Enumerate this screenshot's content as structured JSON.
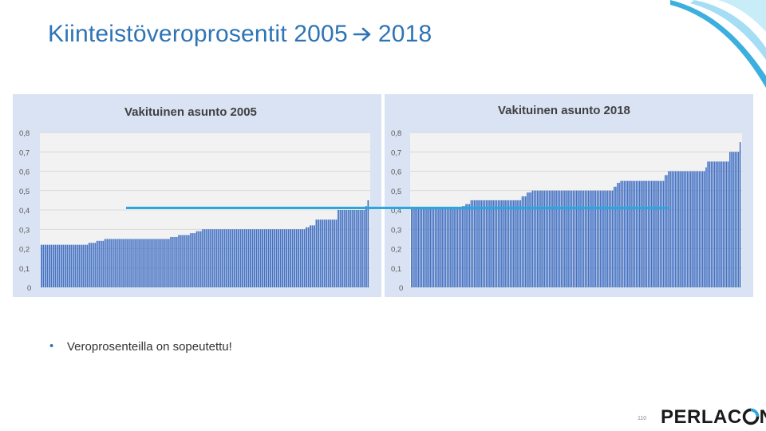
{
  "slide": {
    "title_part1": "Kiinteistöveroprosentit 2005",
    "title_part2": "2018",
    "bullet_text": "Veroprosenteilla on sopeutettu!",
    "page_number": "110",
    "logo_text": "PERLAC",
    "logo_tail": "N"
  },
  "colors": {
    "title": "#2e74b5",
    "bar": "#4472c4",
    "panel": "#dae3f3",
    "reference_line": "#29a8e0"
  },
  "reference_line_value": 0.42,
  "chart_data": [
    {
      "type": "bar",
      "title": "Vakituinen asunto 2005",
      "ylim": [
        0,
        0.8
      ],
      "yticks": [
        "0",
        "0,1",
        "0,2",
        "0,3",
        "0,4",
        "0,5",
        "0,6",
        "0,7",
        "0,8"
      ],
      "xlabel": "",
      "ylabel": "",
      "grid": true,
      "series": [
        {
          "name": "Vakituinen asunto 2005",
          "segments": [
            {
              "count": 24,
              "value": 0.22
            },
            {
              "count": 4,
              "value": 0.23
            },
            {
              "count": 4,
              "value": 0.24
            },
            {
              "count": 33,
              "value": 0.25
            },
            {
              "count": 4,
              "value": 0.26
            },
            {
              "count": 6,
              "value": 0.27
            },
            {
              "count": 3,
              "value": 0.28
            },
            {
              "count": 3,
              "value": 0.29
            },
            {
              "count": 52,
              "value": 0.3
            },
            {
              "count": 2,
              "value": 0.31
            },
            {
              "count": 3,
              "value": 0.32
            },
            {
              "count": 11,
              "value": 0.35
            },
            {
              "count": 14,
              "value": 0.4
            },
            {
              "count": 1,
              "value": 0.42
            },
            {
              "count": 1,
              "value": 0.45
            }
          ]
        }
      ]
    },
    {
      "type": "bar",
      "title": "Vakituinen asunto 2018",
      "ylim": [
        0,
        0.8
      ],
      "yticks": [
        "0",
        "0,1",
        "0,2",
        "0,3",
        "0,4",
        "0,5",
        "0,6",
        "0,7",
        "0,8"
      ],
      "xlabel": "",
      "ylabel": "",
      "grid": true,
      "series": [
        {
          "name": "Vakituinen asunto 2018",
          "segments": [
            {
              "count": 30,
              "value": 0.41
            },
            {
              "count": 2,
              "value": 0.42
            },
            {
              "count": 3,
              "value": 0.43
            },
            {
              "count": 30,
              "value": 0.45
            },
            {
              "count": 3,
              "value": 0.47
            },
            {
              "count": 3,
              "value": 0.49
            },
            {
              "count": 48,
              "value": 0.5
            },
            {
              "count": 2,
              "value": 0.52
            },
            {
              "count": 2,
              "value": 0.54
            },
            {
              "count": 26,
              "value": 0.55
            },
            {
              "count": 2,
              "value": 0.58
            },
            {
              "count": 22,
              "value": 0.6
            },
            {
              "count": 1,
              "value": 0.62
            },
            {
              "count": 13,
              "value": 0.65
            },
            {
              "count": 6,
              "value": 0.7
            },
            {
              "count": 1,
              "value": 0.75
            }
          ]
        }
      ]
    }
  ]
}
